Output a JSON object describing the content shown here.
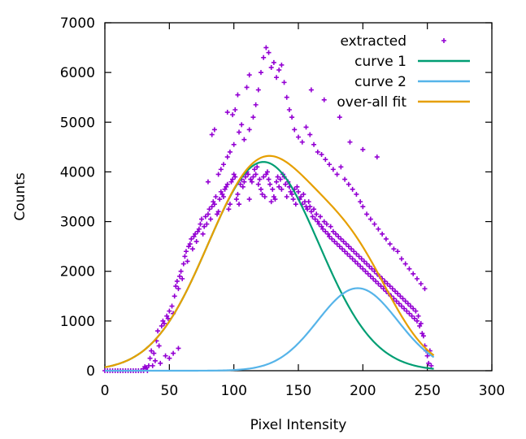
{
  "chart_data": {
    "type": "scatter",
    "xlabel": "Pixel Intensity",
    "ylabel": "Counts",
    "xlim": [
      0,
      300
    ],
    "ylim": [
      0,
      7000
    ],
    "xticks": [
      "0",
      "50",
      "100",
      "150",
      "200",
      "250",
      "300"
    ],
    "yticks": [
      "0",
      "1000",
      "2000",
      "3000",
      "4000",
      "5000",
      "6000",
      "7000"
    ],
    "grid": false,
    "legend_position": "top-right",
    "series": [
      {
        "name": "extracted",
        "kind": "points",
        "color": "#9400d3",
        "points": [
          [
            0,
            0
          ],
          [
            2,
            0
          ],
          [
            4,
            0
          ],
          [
            6,
            0
          ],
          [
            8,
            0
          ],
          [
            10,
            0
          ],
          [
            12,
            0
          ],
          [
            14,
            0
          ],
          [
            16,
            0
          ],
          [
            18,
            0
          ],
          [
            20,
            0
          ],
          [
            22,
            0
          ],
          [
            24,
            0
          ],
          [
            26,
            0
          ],
          [
            28,
            0
          ],
          [
            30,
            40
          ],
          [
            31,
            80
          ],
          [
            32,
            60
          ],
          [
            34,
            100
          ],
          [
            35,
            250
          ],
          [
            36,
            400
          ],
          [
            38,
            350
          ],
          [
            40,
            600
          ],
          [
            41,
            800
          ],
          [
            42,
            500
          ],
          [
            44,
            900
          ],
          [
            45,
            1000
          ],
          [
            46,
            950
          ],
          [
            48,
            1100
          ],
          [
            49,
            1050
          ],
          [
            50,
            1200
          ],
          [
            52,
            1300
          ],
          [
            53,
            1150
          ],
          [
            54,
            1500
          ],
          [
            55,
            1700
          ],
          [
            56,
            1800
          ],
          [
            57,
            1650
          ],
          [
            58,
            1900
          ],
          [
            59,
            2000
          ],
          [
            60,
            1850
          ],
          [
            61,
            2150
          ],
          [
            62,
            2300
          ],
          [
            63,
            2400
          ],
          [
            64,
            2200
          ],
          [
            65,
            2500
          ],
          [
            66,
            2550
          ],
          [
            67,
            2650
          ],
          [
            68,
            2450
          ],
          [
            69,
            2700
          ],
          [
            70,
            2750
          ],
          [
            71,
            2600
          ],
          [
            72,
            2800
          ],
          [
            73,
            2850
          ],
          [
            74,
            2950
          ],
          [
            75,
            3050
          ],
          [
            76,
            2750
          ],
          [
            77,
            2900
          ],
          [
            78,
            3100
          ],
          [
            79,
            2950
          ],
          [
            80,
            3150
          ],
          [
            81,
            3250
          ],
          [
            82,
            3050
          ],
          [
            83,
            3300
          ],
          [
            84,
            3400
          ],
          [
            85,
            3350
          ],
          [
            86,
            3500
          ],
          [
            87,
            3150
          ],
          [
            88,
            3200
          ],
          [
            89,
            3450
          ],
          [
            90,
            3600
          ],
          [
            91,
            3550
          ],
          [
            92,
            3500
          ],
          [
            93,
            3650
          ],
          [
            94,
            3700
          ],
          [
            95,
            3750
          ],
          [
            96,
            3250
          ],
          [
            97,
            3350
          ],
          [
            98,
            3800
          ],
          [
            99,
            3850
          ],
          [
            100,
            3950
          ],
          [
            101,
            3900
          ],
          [
            102,
            3450
          ],
          [
            103,
            3550
          ],
          [
            104,
            3350
          ],
          [
            105,
            3750
          ],
          [
            106,
            3850
          ],
          [
            107,
            3700
          ],
          [
            108,
            3800
          ],
          [
            109,
            3900
          ],
          [
            110,
            4000
          ],
          [
            111,
            3950
          ],
          [
            112,
            3450
          ],
          [
            113,
            3850
          ],
          [
            114,
            3800
          ],
          [
            115,
            3900
          ],
          [
            116,
            4050
          ],
          [
            117,
            3950
          ],
          [
            118,
            4100
          ],
          [
            119,
            3750
          ],
          [
            120,
            3850
          ],
          [
            121,
            3650
          ],
          [
            122,
            3550
          ],
          [
            123,
            3900
          ],
          [
            124,
            3500
          ],
          [
            125,
            3950
          ],
          [
            126,
            4000
          ],
          [
            127,
            3850
          ],
          [
            128,
            3750
          ],
          [
            129,
            3400
          ],
          [
            130,
            3650
          ],
          [
            131,
            3500
          ],
          [
            132,
            3450
          ],
          [
            133,
            3800
          ],
          [
            134,
            3900
          ],
          [
            135,
            3700
          ],
          [
            136,
            3850
          ],
          [
            137,
            3650
          ],
          [
            138,
            3950
          ],
          [
            139,
            3900
          ],
          [
            140,
            3750
          ],
          [
            141,
            3500
          ],
          [
            142,
            3800
          ],
          [
            143,
            3700
          ],
          [
            144,
            3600
          ],
          [
            145,
            3550
          ],
          [
            146,
            3450
          ],
          [
            147,
            3650
          ],
          [
            148,
            3350
          ],
          [
            149,
            3700
          ],
          [
            150,
            3600
          ],
          [
            151,
            3450
          ],
          [
            152,
            3500
          ],
          [
            153,
            3350
          ],
          [
            154,
            3550
          ],
          [
            155,
            3400
          ],
          [
            156,
            3300
          ],
          [
            157,
            3250
          ],
          [
            158,
            3400
          ],
          [
            159,
            3300
          ],
          [
            160,
            3200
          ],
          [
            161,
            3100
          ],
          [
            162,
            3250
          ],
          [
            163,
            3050
          ],
          [
            164,
            3150
          ],
          [
            165,
            3000
          ],
          [
            166,
            2950
          ],
          [
            167,
            3100
          ],
          [
            168,
            2900
          ],
          [
            169,
            2850
          ],
          [
            170,
            3000
          ],
          [
            171,
            2800
          ],
          [
            172,
            2950
          ],
          [
            173,
            2750
          ],
          [
            174,
            2700
          ],
          [
            175,
            2900
          ],
          [
            176,
            2650
          ],
          [
            177,
            2800
          ],
          [
            178,
            2600
          ],
          [
            179,
            2750
          ],
          [
            180,
            2550
          ],
          [
            181,
            2700
          ],
          [
            182,
            2500
          ],
          [
            183,
            2650
          ],
          [
            184,
            2450
          ],
          [
            185,
            2600
          ],
          [
            186,
            2400
          ],
          [
            187,
            2550
          ],
          [
            188,
            2350
          ],
          [
            189,
            2500
          ],
          [
            190,
            2300
          ],
          [
            191,
            2450
          ],
          [
            192,
            2250
          ],
          [
            193,
            2400
          ],
          [
            194,
            2200
          ],
          [
            195,
            2350
          ],
          [
            196,
            2150
          ],
          [
            197,
            2300
          ],
          [
            198,
            2100
          ],
          [
            199,
            2250
          ],
          [
            200,
            2050
          ],
          [
            201,
            2200
          ],
          [
            202,
            2000
          ],
          [
            203,
            2150
          ],
          [
            204,
            1950
          ],
          [
            205,
            2100
          ],
          [
            206,
            1900
          ],
          [
            207,
            2050
          ],
          [
            208,
            1850
          ],
          [
            209,
            2000
          ],
          [
            210,
            1800
          ],
          [
            211,
            1950
          ],
          [
            212,
            1750
          ],
          [
            213,
            1900
          ],
          [
            214,
            1700
          ],
          [
            215,
            1850
          ],
          [
            216,
            1650
          ],
          [
            217,
            1800
          ],
          [
            218,
            1600
          ],
          [
            219,
            1750
          ],
          [
            220,
            1550
          ],
          [
            221,
            1700
          ],
          [
            222,
            1500
          ],
          [
            223,
            1650
          ],
          [
            224,
            1450
          ],
          [
            225,
            1600
          ],
          [
            226,
            1400
          ],
          [
            227,
            1550
          ],
          [
            228,
            1350
          ],
          [
            229,
            1500
          ],
          [
            230,
            1300
          ],
          [
            231,
            1450
          ],
          [
            232,
            1250
          ],
          [
            233,
            1400
          ],
          [
            234,
            1200
          ],
          [
            235,
            1350
          ],
          [
            236,
            1150
          ],
          [
            237,
            1300
          ],
          [
            238,
            1100
          ],
          [
            239,
            1250
          ],
          [
            240,
            1050
          ],
          [
            241,
            1200
          ],
          [
            242,
            1000
          ],
          [
            243,
            1100
          ],
          [
            244,
            900
          ],
          [
            245,
            950
          ],
          [
            246,
            750
          ],
          [
            247,
            700
          ],
          [
            248,
            500
          ],
          [
            249,
            400
          ],
          [
            250,
            300
          ],
          [
            251,
            150
          ],
          [
            252,
            400
          ],
          [
            253,
            100
          ],
          [
            88,
            3950
          ],
          [
            90,
            4050
          ],
          [
            92,
            4150
          ],
          [
            95,
            4300
          ],
          [
            97,
            4400
          ],
          [
            100,
            4550
          ],
          [
            104,
            4800
          ],
          [
            106,
            4950
          ],
          [
            108,
            4650
          ],
          [
            112,
            4850
          ],
          [
            115,
            5100
          ],
          [
            117,
            5350
          ],
          [
            119,
            5650
          ],
          [
            121,
            6000
          ],
          [
            123,
            6300
          ],
          [
            125,
            6500
          ],
          [
            127,
            6400
          ],
          [
            129,
            6100
          ],
          [
            131,
            6200
          ],
          [
            133,
            5900
          ],
          [
            135,
            6050
          ],
          [
            137,
            6150
          ],
          [
            139,
            5800
          ],
          [
            141,
            5500
          ],
          [
            143,
            5250
          ],
          [
            145,
            5100
          ],
          [
            147,
            4850
          ],
          [
            150,
            4700
          ],
          [
            153,
            4600
          ],
          [
            156,
            4900
          ],
          [
            159,
            4750
          ],
          [
            162,
            4550
          ],
          [
            165,
            4400
          ],
          [
            168,
            4350
          ],
          [
            171,
            4250
          ],
          [
            174,
            4150
          ],
          [
            177,
            4050
          ],
          [
            180,
            3950
          ],
          [
            183,
            4100
          ],
          [
            186,
            3850
          ],
          [
            189,
            3750
          ],
          [
            192,
            3650
          ],
          [
            195,
            3550
          ],
          [
            198,
            3400
          ],
          [
            200,
            3300
          ],
          [
            203,
            3150
          ],
          [
            206,
            3050
          ],
          [
            209,
            2950
          ],
          [
            212,
            2850
          ],
          [
            215,
            2750
          ],
          [
            218,
            2650
          ],
          [
            221,
            2550
          ],
          [
            224,
            2450
          ],
          [
            227,
            2400
          ],
          [
            230,
            2250
          ],
          [
            233,
            2150
          ],
          [
            236,
            2050
          ],
          [
            239,
            1950
          ],
          [
            242,
            1850
          ],
          [
            245,
            1750
          ],
          [
            248,
            1650
          ],
          [
            80,
            3800
          ],
          [
            83,
            4750
          ],
          [
            85,
            4850
          ],
          [
            95,
            5200
          ],
          [
            99,
            5150
          ],
          [
            101,
            5250
          ],
          [
            103,
            5550
          ],
          [
            110,
            5700
          ],
          [
            112,
            5950
          ],
          [
            160,
            5650
          ],
          [
            170,
            5450
          ],
          [
            182,
            5100
          ],
          [
            190,
            4600
          ],
          [
            200,
            4450
          ],
          [
            211,
            4300
          ],
          [
            30,
            0
          ],
          [
            33,
            0
          ],
          [
            37,
            100
          ],
          [
            39,
            200
          ],
          [
            43,
            150
          ],
          [
            47,
            300
          ],
          [
            50,
            250
          ],
          [
            53,
            350
          ],
          [
            57,
            450
          ]
        ]
      },
      {
        "name": "curve 1",
        "kind": "gaussian",
        "color": "#009e73",
        "amplitude": 4200,
        "center": 123,
        "sigma": 43
      },
      {
        "name": "curve 2",
        "kind": "gaussian",
        "color": "#56b4e9",
        "amplitude": 1660,
        "center": 196,
        "sigma": 31
      },
      {
        "name": "over-all fit",
        "kind": "sum",
        "color": "#e69f00"
      }
    ]
  }
}
